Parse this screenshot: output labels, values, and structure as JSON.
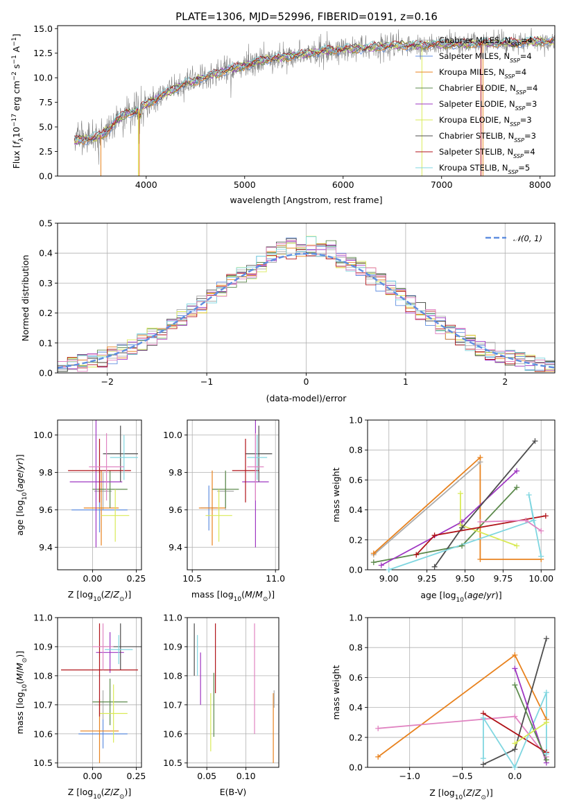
{
  "figure": {
    "title": "PLATE=1306, MJD=52996, FIBERID=0191, z=0.16"
  },
  "colors": {
    "Chabrier MILES": "#ababab",
    "Salpeter MILES": "#5f8ee0",
    "Kroupa MILES": "#e8821e",
    "Chabrier ELODIE": "#5c8a4c",
    "Salpeter ELODIE": "#9e36c2",
    "Kroupa ELODIE": "#d9ea56",
    "Chabrier STELIB": "#4d4d4d",
    "Salpeter STELIB": "#b01218",
    "Kroupa STELIB": "#7fd6e0",
    "pink": "#e083c1",
    "spectrum": "#808080",
    "gauss": "#5f8ee0",
    "grid": "#b0b0b0"
  },
  "chart_data": [
    {
      "type": "line",
      "id": "spectrum",
      "title": "PLATE=1306, MJD=52996, FIBERID=0191, z=0.16",
      "xlabel": "wavelength [Angstrom, rest frame]",
      "ylabel": "Flux [f_λ 10^-17 erg cm^-2 s^-1 A^-1]",
      "xlim": [
        3100,
        8150
      ],
      "ylim": [
        0,
        15.3
      ],
      "xticks": [
        4000,
        5000,
        6000,
        7000,
        8000
      ],
      "yticks": [
        0.0,
        2.5,
        5.0,
        7.5,
        10.0,
        12.5,
        15.0
      ],
      "grid": false,
      "legend_position": "upper right",
      "data_curve": {
        "x": [
          3270,
          3400,
          3500,
          3600,
          3700,
          3800,
          3900,
          4000,
          4100,
          4200,
          4300,
          4400,
          4500,
          4600,
          4700,
          4800,
          4900,
          5000,
          5200,
          5400,
          5600,
          5800,
          6000,
          6200,
          6400,
          6600,
          6800,
          7000,
          7200,
          7400,
          7600,
          7800,
          8000
        ],
        "y": [
          3.5,
          3.8,
          3.9,
          4.6,
          5.6,
          6.4,
          6.6,
          7.3,
          7.8,
          8.4,
          8.9,
          9.4,
          9.7,
          10.0,
          10.4,
          10.7,
          11.0,
          11.2,
          11.8,
          12.1,
          12.4,
          12.7,
          12.9,
          13.0,
          13.2,
          13.3,
          13.3,
          13.4,
          13.4,
          13.5,
          13.5,
          13.6,
          13.7
        ]
      },
      "series": [
        {
          "name": "Chabrier MILES, N_SSP=4"
        },
        {
          "name": "Salpeter MILES, N_SSP=4"
        },
        {
          "name": "Kroupa MILES, N_SSP=4"
        },
        {
          "name": "Chabrier ELODIE, N_SSP=4"
        },
        {
          "name": "Salpeter ELODIE, N_SSP=3"
        },
        {
          "name": "Kroupa ELODIE, N_SSP=3"
        },
        {
          "name": "Chabrier STELIB, N_SSP=3"
        },
        {
          "name": "Salpeter STELIB, N_SSP=4"
        },
        {
          "name": "Kroupa STELIB, N_SSP=5"
        }
      ]
    },
    {
      "type": "bar",
      "id": "residuals",
      "xlabel": "(data-model)/error",
      "ylabel": "Normed distribution",
      "xlim": [
        -2.5,
        2.5
      ],
      "ylim": [
        0,
        0.5
      ],
      "xticks": [
        -2,
        -1,
        0,
        1,
        2
      ],
      "yticks": [
        0.0,
        0.1,
        0.2,
        0.3,
        0.4,
        0.5
      ],
      "grid": true,
      "bin_width": 0.1,
      "legend": [
        "N(0,1)"
      ],
      "legend_position": "upper right"
    },
    {
      "type": "scatter",
      "id": "age_vs_Z",
      "xlabel": "Z [log10(Z/Z⊙)]",
      "ylabel": "age [log10(age/yr)]",
      "xlim": [
        -0.2,
        0.28
      ],
      "ylim": [
        9.28,
        10.08
      ],
      "xticks": [
        0.0,
        0.25
      ],
      "yticks": [
        9.4,
        9.6,
        9.8,
        10.0
      ],
      "grid": true,
      "points": [
        {
          "series": "Chabrier MILES",
          "x": 0.06,
          "y": 9.7,
          "xerr": 0.05,
          "yerr": 0.1
        },
        {
          "series": "Salpeter MILES",
          "x": 0.04,
          "y": 9.6,
          "xerr": 0.16,
          "yerr": 0.12
        },
        {
          "series": "Kroupa MILES",
          "x": 0.05,
          "y": 9.61,
          "xerr": 0.1,
          "yerr": 0.2
        },
        {
          "series": "Chabrier ELODIE",
          "x": 0.1,
          "y": 9.71,
          "xerr": 0.1,
          "yerr": 0.1
        },
        {
          "series": "Salpeter ELODIE",
          "x": 0.02,
          "y": 9.75,
          "xerr": 0.15,
          "yerr": 0.35
        },
        {
          "series": "Kroupa ELODIE",
          "x": 0.13,
          "y": 9.57,
          "xerr": 0.08,
          "yerr": 0.14
        },
        {
          "series": "Chabrier STELIB",
          "x": 0.16,
          "y": 9.9,
          "xerr": 0.1,
          "yerr": 0.15
        },
        {
          "series": "Salpeter STELIB",
          "x": 0.04,
          "y": 9.81,
          "xerr": 0.18,
          "yerr": 0.17
        },
        {
          "series": "Kroupa STELIB",
          "x": 0.18,
          "y": 9.88,
          "xerr": 0.08,
          "yerr": 0.12
        },
        {
          "series": "pink",
          "x": 0.08,
          "y": 9.83,
          "xerr": 0.1,
          "yerr": 0.18
        }
      ]
    },
    {
      "type": "scatter",
      "id": "age_vs_mass",
      "xlabel": "mass [log10(M/M⊙)]",
      "ylabel": "",
      "xlim": [
        10.47,
        11.02
      ],
      "ylim": [
        9.28,
        10.08
      ],
      "xticks": [
        10.5,
        11.0
      ],
      "yticks": [
        9.4,
        9.6,
        9.8,
        10.0
      ],
      "grid": true,
      "points": [
        {
          "series": "Chabrier MILES",
          "x": 10.7,
          "y": 9.7,
          "xerr": 0.05,
          "yerr": 0.1
        },
        {
          "series": "Salpeter MILES",
          "x": 10.6,
          "y": 9.61,
          "xerr": 0.05,
          "yerr": 0.12
        },
        {
          "series": "Kroupa MILES",
          "x": 10.62,
          "y": 9.61,
          "xerr": 0.08,
          "yerr": 0.2
        },
        {
          "series": "Chabrier ELODIE",
          "x": 10.7,
          "y": 9.71,
          "xerr": 0.08,
          "yerr": 0.1
        },
        {
          "series": "Salpeter ELODIE",
          "x": 10.88,
          "y": 9.75,
          "xerr": 0.08,
          "yerr": 0.35
        },
        {
          "series": "Kroupa ELODIE",
          "x": 10.66,
          "y": 9.57,
          "xerr": 0.08,
          "yerr": 0.14
        },
        {
          "series": "Chabrier STELIB",
          "x": 10.9,
          "y": 9.9,
          "xerr": 0.08,
          "yerr": 0.15
        },
        {
          "series": "Salpeter STELIB",
          "x": 10.82,
          "y": 9.81,
          "xerr": 0.08,
          "yerr": 0.17
        },
        {
          "series": "Kroupa STELIB",
          "x": 10.89,
          "y": 9.88,
          "xerr": 0.06,
          "yerr": 0.12
        },
        {
          "series": "pink",
          "x": 10.88,
          "y": 9.83,
          "xerr": 0.05,
          "yerr": 0.18
        }
      ]
    },
    {
      "type": "line",
      "id": "weight_vs_age",
      "xlabel": "age [log10(age/yr)]",
      "ylabel": "mass weight",
      "xlim": [
        8.86,
        10.09
      ],
      "ylim": [
        0,
        1.0
      ],
      "xticks": [
        9.0,
        9.25,
        9.5,
        9.75,
        10.0
      ],
      "xticklabels": [
        "9.00",
        "9.25",
        "9.50",
        "9.75",
        "10.00"
      ],
      "yticks": [
        0.0,
        0.2,
        0.4,
        0.6,
        0.8,
        1.0
      ],
      "grid": true,
      "series": [
        {
          "key": "Chabrier MILES",
          "x": [
            8.9,
            9.6
          ],
          "y": [
            0.1,
            0.72
          ]
        },
        {
          "key": "Kroupa MILES",
          "x": [
            8.9,
            9.6,
            9.6,
            10.0
          ],
          "y": [
            0.11,
            0.75,
            0.07,
            0.07
          ]
        },
        {
          "key": "Chabrier ELODIE",
          "x": [
            8.9,
            9.48,
            9.84
          ],
          "y": [
            0.05,
            0.16,
            0.55
          ]
        },
        {
          "key": "Salpeter ELODIE",
          "x": [
            8.95,
            9.48,
            9.84
          ],
          "y": [
            0.03,
            0.32,
            0.66
          ]
        },
        {
          "key": "Kroupa ELODIE",
          "x": [
            9.47,
            9.47,
            9.84
          ],
          "y": [
            0.51,
            0.3,
            0.16
          ]
        },
        {
          "key": "Chabrier STELIB",
          "x": [
            9.3,
            9.48,
            9.96
          ],
          "y": [
            0.02,
            0.28,
            0.86
          ]
        },
        {
          "key": "Salpeter STELIB",
          "x": [
            9.18,
            9.3,
            10.03
          ],
          "y": [
            0.1,
            0.23,
            0.36
          ]
        },
        {
          "key": "Kroupa STELIB",
          "x": [
            9.0,
            9.95,
            9.92,
            10.0
          ],
          "y": [
            0.0,
            0.33,
            0.5,
            0.09
          ]
        },
        {
          "key": "pink",
          "x": [
            9.6,
            9.9,
            10.0
          ],
          "y": [
            0.32,
            0.33,
            0.26
          ]
        }
      ]
    },
    {
      "type": "scatter",
      "id": "mass_vs_Z",
      "xlabel": "Z [log10(Z/Z⊙)]",
      "ylabel": "mass [log10(M/M⊙)]",
      "xlim": [
        -0.2,
        0.28
      ],
      "ylim": [
        10.485,
        11.0
      ],
      "xticks": [
        0.0,
        0.25
      ],
      "yticks": [
        10.5,
        10.6,
        10.7,
        10.8,
        10.9,
        11.0
      ],
      "grid": true,
      "points": [
        {
          "series": "Chabrier MILES",
          "x": 0.06,
          "y": 10.7,
          "xerr": 0.05,
          "yerr": 0.05
        },
        {
          "series": "Salpeter MILES",
          "x": 0.06,
          "y": 10.6,
          "xerr": 0.14,
          "yerr": 0.05
        },
        {
          "series": "Kroupa MILES",
          "x": 0.04,
          "y": 10.61,
          "xerr": 0.11,
          "yerr": 0.11
        },
        {
          "series": "Chabrier ELODIE",
          "x": 0.1,
          "y": 10.71,
          "xerr": 0.1,
          "yerr": 0.08
        },
        {
          "series": "Salpeter ELODIE",
          "x": 0.1,
          "y": 10.88,
          "xerr": 0.08,
          "yerr": 0.07
        },
        {
          "series": "Kroupa ELODIE",
          "x": 0.12,
          "y": 10.67,
          "xerr": 0.08,
          "yerr": 0.1
        },
        {
          "series": "Chabrier STELIB",
          "x": 0.16,
          "y": 10.9,
          "xerr": 0.12,
          "yerr": 0.08
        },
        {
          "series": "Salpeter STELIB",
          "x": 0.04,
          "y": 10.82,
          "xerr": 0.22,
          "yerr": 0.16
        },
        {
          "series": "Kroupa STELIB",
          "x": 0.15,
          "y": 10.89,
          "xerr": 0.08,
          "yerr": 0.05
        },
        {
          "series": "pink",
          "x": 0.06,
          "y": 10.9,
          "xerr": 0.06,
          "yerr": 0.08
        }
      ]
    },
    {
      "type": "scatter",
      "id": "mass_vs_EBV",
      "xlabel": "E(B-V)",
      "ylabel": "",
      "xlim": [
        0.025,
        0.142
      ],
      "ylim": [
        10.485,
        11.0
      ],
      "xticks": [
        0.05,
        0.1
      ],
      "xticklabels": [
        "0.05",
        "0.10"
      ],
      "yticks": [
        10.5,
        10.6,
        10.7,
        10.8,
        10.9,
        11.0
      ],
      "grid": true,
      "points": [
        {
          "series": "Chabrier STELIB",
          "x": 0.034,
          "y": 10.89,
          "yerr": 0.09
        },
        {
          "series": "Kroupa STELIB",
          "x": 0.038,
          "y": 10.87,
          "yerr": 0.07
        },
        {
          "series": "Salpeter ELODIE",
          "x": 0.042,
          "y": 10.79,
          "yerr": 0.09
        },
        {
          "series": "Kroupa ELODIE",
          "x": 0.055,
          "y": 10.64,
          "yerr": 0.1
        },
        {
          "series": "Chabrier ELODIE",
          "x": 0.059,
          "y": 10.7,
          "yerr": 0.11
        },
        {
          "series": "Salpeter STELIB",
          "x": 0.061,
          "y": 10.86,
          "yerr": 0.12
        },
        {
          "series": "pink",
          "x": 0.111,
          "y": 10.79,
          "yerr": 0.19
        },
        {
          "series": "Kroupa MILES",
          "x": 0.135,
          "y": 10.62,
          "yerr": 0.12
        },
        {
          "series": "Chabrier MILES",
          "x": 0.136,
          "y": 10.72,
          "yerr": 0.03
        }
      ]
    },
    {
      "type": "line",
      "id": "weight_vs_Z",
      "xlabel": "Z [log10(Z/Z⊙)]",
      "ylabel": "mass weight",
      "xlim": [
        -1.4,
        0.38
      ],
      "ylim": [
        0,
        1.0
      ],
      "xticks": [
        -1.0,
        -0.5,
        0.0
      ],
      "xticklabels": [
        "-1.0",
        "-0.5",
        "0.0"
      ],
      "yticks": [
        0.0,
        0.2,
        0.4,
        0.6,
        0.8,
        1.0
      ],
      "grid": true,
      "series": [
        {
          "key": "Kroupa MILES",
          "x": [
            -1.3,
            0.0,
            0.3
          ],
          "y": [
            0.07,
            0.75,
            0.32
          ]
        },
        {
          "key": "pink",
          "x": [
            -1.3,
            0.0,
            0.3
          ],
          "y": [
            0.26,
            0.34,
            0.07
          ]
        },
        {
          "key": "Chabrier STELIB",
          "x": [
            -0.3,
            0.0,
            0.3
          ],
          "y": [
            0.02,
            0.12,
            0.86
          ]
        },
        {
          "key": "Salpeter STELIB",
          "x": [
            -0.3,
            0.3
          ],
          "y": [
            0.36,
            0.1
          ]
        },
        {
          "key": "Kroupa STELIB",
          "x": [
            -0.3,
            -0.3,
            0.0,
            0.3,
            0.3
          ],
          "y": [
            0.06,
            0.33,
            0.0,
            0.5,
            0.09
          ]
        },
        {
          "key": "Salpeter ELODIE",
          "x": [
            0.0,
            0.3
          ],
          "y": [
            0.66,
            0.03
          ]
        },
        {
          "key": "Chabrier ELODIE",
          "x": [
            0.0,
            0.3
          ],
          "y": [
            0.55,
            0.05
          ]
        },
        {
          "key": "Kroupa ELODIE",
          "x": [
            0.0,
            0.3
          ],
          "y": [
            0.16,
            0.3
          ]
        }
      ]
    }
  ],
  "spectrum_legend": [
    {
      "key": "Chabrier MILES",
      "base": "Chabrier MILES, N",
      "sub": "SSP",
      "tail": "=4"
    },
    {
      "key": "Salpeter MILES",
      "base": "Salpeter MILES, N",
      "sub": "SSP",
      "tail": "=4"
    },
    {
      "key": "Kroupa MILES",
      "base": "Kroupa MILES, N",
      "sub": "SSP",
      "tail": "=4"
    },
    {
      "key": "Chabrier ELODIE",
      "base": "Chabrier ELODIE, N",
      "sub": "SSP",
      "tail": "=4"
    },
    {
      "key": "Salpeter ELODIE",
      "base": "Salpeter ELODIE, N",
      "sub": "SSP",
      "tail": "=3"
    },
    {
      "key": "Kroupa ELODIE",
      "base": "Kroupa ELODIE, N",
      "sub": "SSP",
      "tail": "=3"
    },
    {
      "key": "Chabrier STELIB",
      "base": "Chabrier STELIB, N",
      "sub": "SSP",
      "tail": "=3"
    },
    {
      "key": "Salpeter STELIB",
      "base": "Salpeter STELIB, N",
      "sub": "SSP",
      "tail": "=4"
    },
    {
      "key": "Kroupa STELIB",
      "base": "Kroupa STELIB, N",
      "sub": "SSP",
      "tail": "=5"
    }
  ],
  "hist_legend": {
    "label": "N(0,1)"
  }
}
